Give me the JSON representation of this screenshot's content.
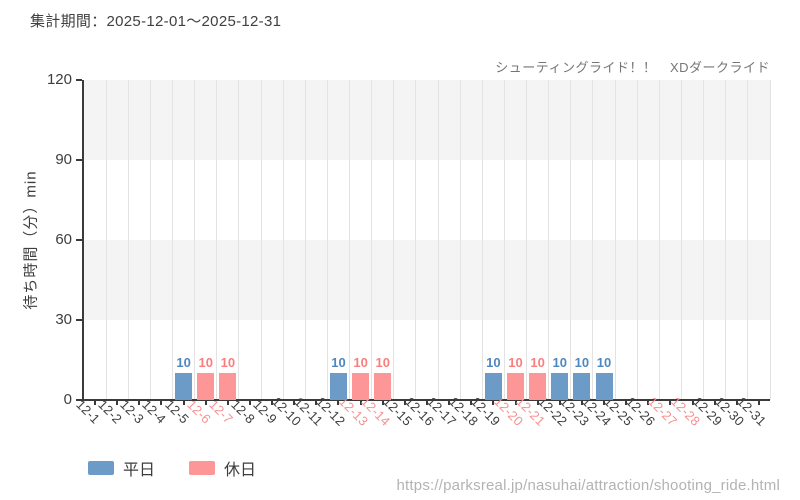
{
  "header": {
    "title": "集計期間：2025-12-01～2025-12-31",
    "attraction": "シューティングライド！！　XDダークライド"
  },
  "chart_data": {
    "type": "bar",
    "title": "",
    "xlabel": "",
    "ylabel": "待ち時間（分）min",
    "ylim": [
      0,
      120
    ],
    "yticks": [
      0,
      30,
      60,
      90,
      120
    ],
    "grid": "vertical-lines with alternating horizontal bands",
    "legend_position": "bottom-left",
    "categories": [
      "12-1",
      "12-2",
      "12-3",
      "12-4",
      "12-5",
      "12-6",
      "12-7",
      "12-8",
      "12-9",
      "12-10",
      "12-11",
      "12-12",
      "12-13",
      "12-14",
      "12-15",
      "12-16",
      "12-17",
      "12-18",
      "12-19",
      "12-20",
      "12-21",
      "12-22",
      "12-23",
      "12-24",
      "12-25",
      "12-26",
      "12-27",
      "12-28",
      "12-29",
      "12-30",
      "12-31"
    ],
    "weekend_indices": [
      5,
      6,
      12,
      13,
      19,
      20,
      26,
      27
    ],
    "series": [
      {
        "name": "平日",
        "values": [
          null,
          null,
          null,
          null,
          10,
          null,
          null,
          null,
          null,
          null,
          null,
          10,
          null,
          null,
          null,
          null,
          null,
          null,
          10,
          null,
          null,
          10,
          10,
          10,
          null,
          null,
          null,
          null,
          null,
          null,
          null
        ]
      },
      {
        "name": "休日",
        "values": [
          null,
          null,
          null,
          null,
          null,
          10,
          10,
          null,
          null,
          null,
          null,
          null,
          10,
          10,
          null,
          null,
          null,
          null,
          null,
          10,
          10,
          null,
          null,
          null,
          null,
          null,
          null,
          null,
          null,
          null,
          null
        ]
      }
    ],
    "colors": {
      "weekday_bar": "#6c9bc7",
      "holiday_bar": "#fd9797",
      "weekday_value_label": "#4f87bf",
      "holiday_value_label": "#f97f7f",
      "weekend_tick_label": "#f79090",
      "tick_label": "#3d3d3d",
      "band": "#f4f4f4",
      "gridline": "#e3e3e3",
      "axis": "#3a3a3a"
    }
  },
  "legend": {
    "items": [
      {
        "label": "平日",
        "color": "#6c9bc7"
      },
      {
        "label": "休日",
        "color": "#fd9797"
      }
    ]
  },
  "footer": {
    "url": "https://parksreal.jp/nasuhai/attraction/shooting_ride.html"
  }
}
